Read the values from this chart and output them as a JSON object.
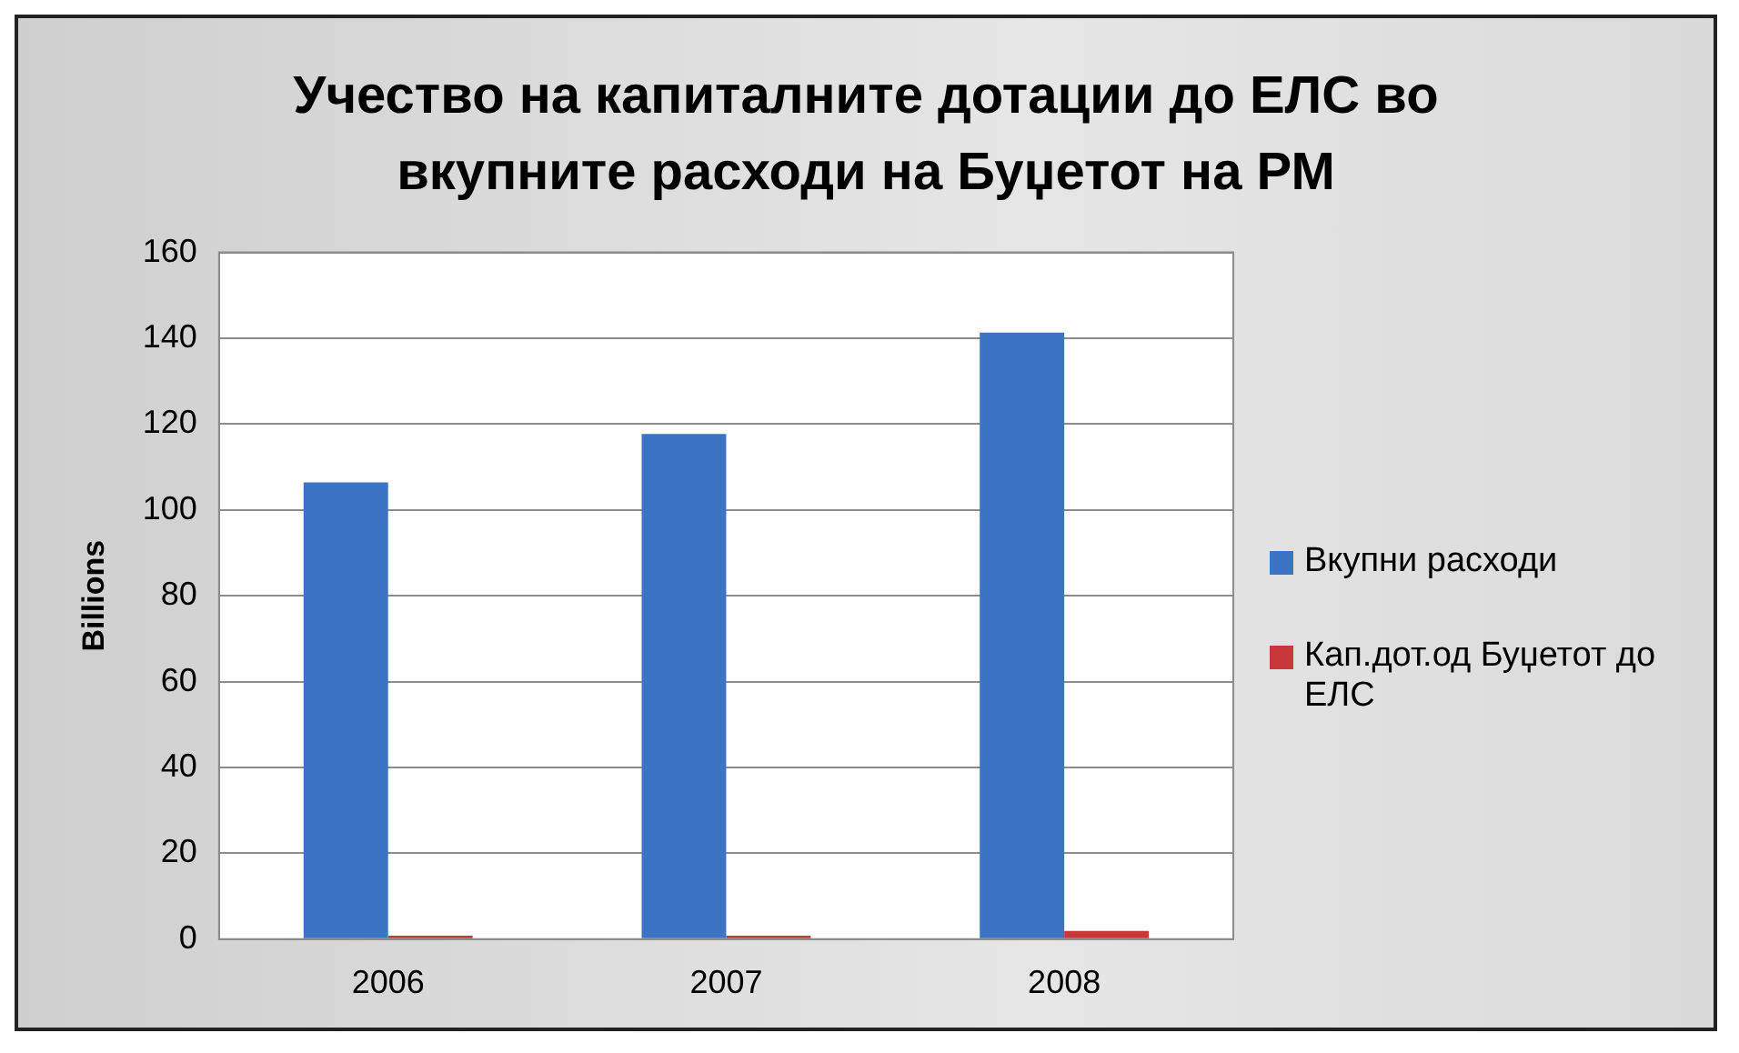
{
  "chart_data": {
    "type": "bar",
    "title": "Учество на капиталните дотации до ЕЛС во вкупните расходи на Буџетот на РМ",
    "ylabel": "Billions",
    "categories": [
      "2006",
      "2007",
      "2008"
    ],
    "series": [
      {
        "name": "Вкупни расходи",
        "color": "#3a74c2",
        "values": [
          106.4,
          117.7,
          141.3
        ]
      },
      {
        "name": "Кап.дот.од Буџетот до ЕЛС",
        "color": "#c8383a",
        "values": [
          0.8,
          0.8,
          1.9
        ]
      }
    ],
    "ylim": [
      0,
      160
    ],
    "yticks": [
      0,
      20,
      40,
      60,
      80,
      100,
      120,
      140,
      160
    ],
    "grid": "y",
    "legend": "right"
  }
}
